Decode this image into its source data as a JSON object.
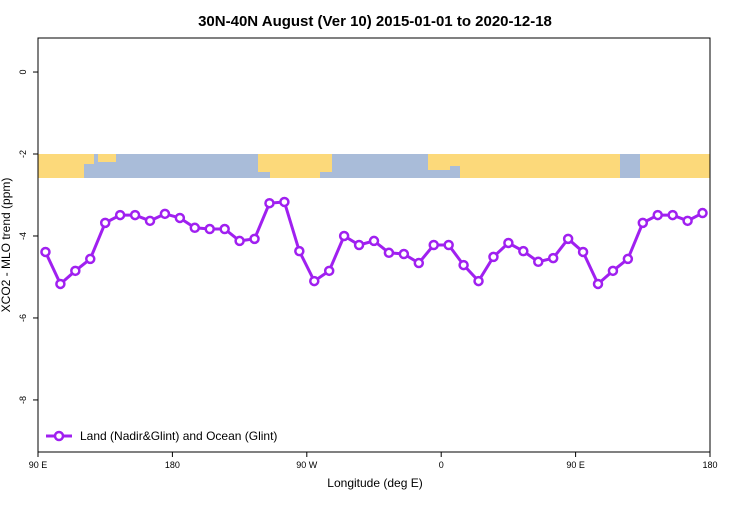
{
  "chart_data": {
    "type": "line",
    "title": "30N-40N August (Ver 10)   2015-01-01 to 2020-12-18",
    "x_label": "Longitude (deg E)",
    "y_label": "XCO2 - MLO trend (ppm)",
    "x": [
      95,
      105,
      115,
      125,
      135,
      145,
      155,
      165,
      175,
      185,
      195,
      205,
      215,
      225,
      235,
      245,
      255,
      265,
      275,
      285,
      295,
      305,
      315,
      325,
      335,
      345,
      355,
      365,
      375,
      385,
      395,
      405,
      415,
      425,
      435,
      445,
      455,
      465,
      475,
      485,
      495,
      505,
      515,
      525,
      535
    ],
    "series": [
      {
        "name": "Land (Nadir&Glint) and Ocean (Glint)",
        "color": "#a020f0",
        "values": [
          -4.39,
          -5.17,
          -4.85,
          -4.56,
          -3.68,
          -3.49,
          -3.49,
          -3.63,
          -3.46,
          -3.56,
          -3.8,
          -3.83,
          -3.83,
          -4.12,
          -4.07,
          -3.2,
          -3.17,
          -4.37,
          -5.1,
          -4.85,
          -4.0,
          -4.22,
          -4.12,
          -4.41,
          -4.44,
          -4.66,
          -4.22,
          -4.22,
          -4.71,
          -5.1,
          -4.51,
          -4.17,
          -4.37,
          -4.63,
          -4.54,
          -4.07,
          -4.39,
          -5.17,
          -4.85,
          -4.56,
          -3.68,
          -3.49,
          -3.49,
          -3.63,
          -3.44
        ]
      }
    ],
    "xlim": [
      90,
      540
    ],
    "xticks": [
      {
        "value": 90,
        "label": "90 E"
      },
      {
        "value": 180,
        "label": "180"
      },
      {
        "value": 270,
        "label": "90 W"
      },
      {
        "value": 360,
        "label": "0"
      },
      {
        "value": 450,
        "label": "90 E"
      },
      {
        "value": 540,
        "label": "180"
      }
    ],
    "ylim": [
      -9.27,
      0.83
    ],
    "yticks": [
      0,
      -2,
      -4,
      -6,
      -8
    ],
    "legend": "bottom-left"
  }
}
